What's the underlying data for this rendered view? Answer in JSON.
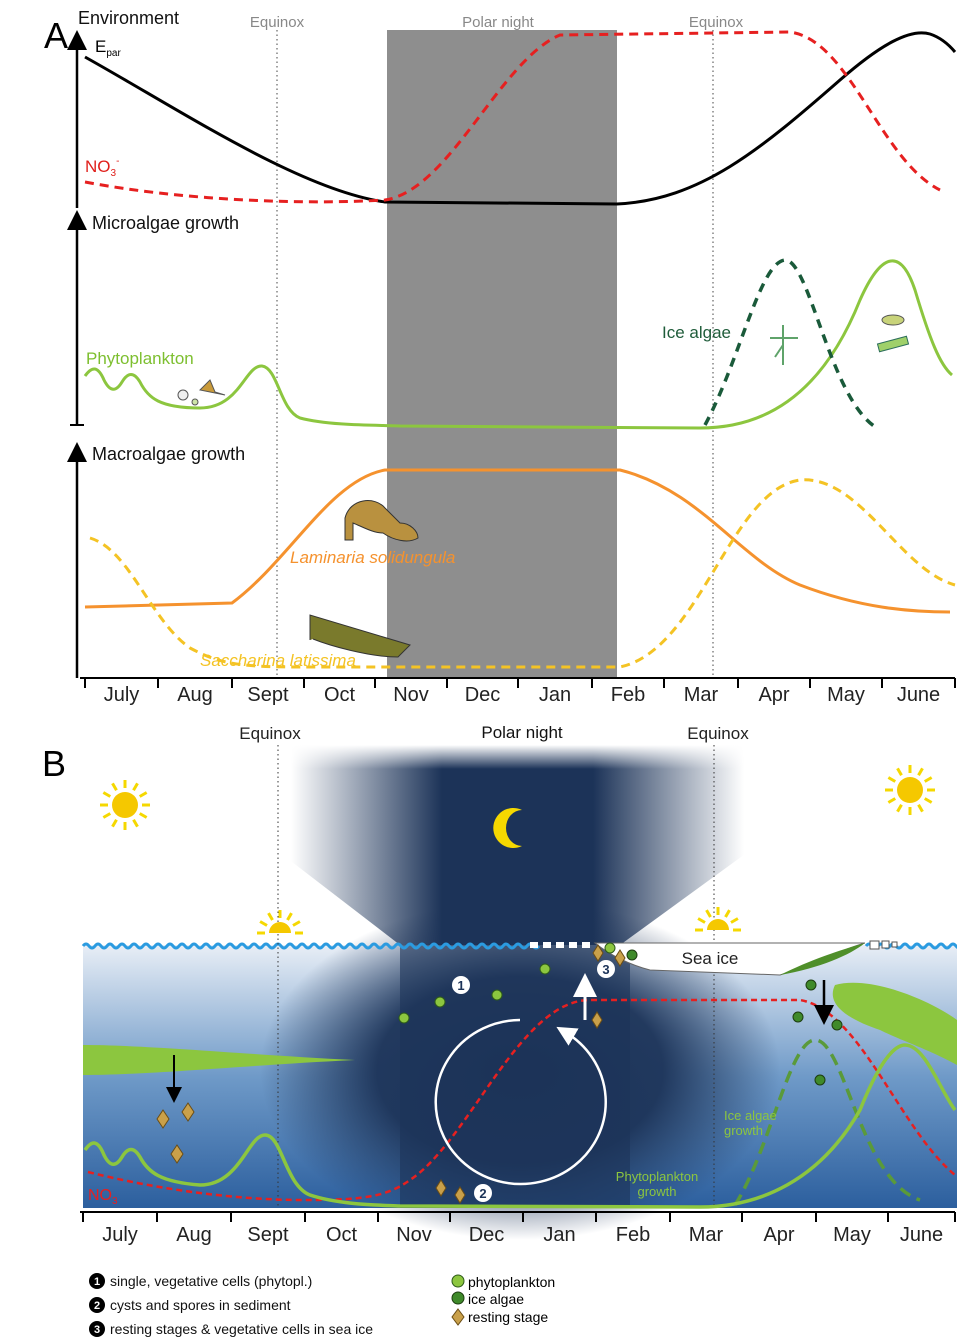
{
  "panel_a": {
    "label": "A",
    "equinox_left": "Equinox",
    "polar_night": "Polar night",
    "equinox_right": "Equinox",
    "environment": {
      "title": "Environment",
      "epar": {
        "symbol": "E",
        "subscript": "par"
      },
      "nitrate": {
        "symbol": "NO",
        "subscript": "3",
        "superscript": "-"
      }
    },
    "microalgae": {
      "title": "Microalgae growth",
      "phytoplankton": "Phytoplankton",
      "ice_algae": "Ice algae"
    },
    "macroalgae": {
      "title": "Macroalgae growth",
      "laminaria": "Laminaria solidungula",
      "saccharina": "Saccharina latissima"
    },
    "months": [
      "July",
      "Aug",
      "Sept",
      "Oct",
      "Nov",
      "Dec",
      "Jan",
      "Feb",
      "Mar",
      "Apr",
      "May",
      "June"
    ]
  },
  "panel_b": {
    "label": "B",
    "equinox_left": "Equinox",
    "polar_night": "Polar night",
    "equinox_right": "Equinox",
    "sea_ice": "Sea ice",
    "nitrate": {
      "symbol": "NO",
      "subscript": "3"
    },
    "ice_algae_growth": [
      "Ice algae",
      "growth"
    ],
    "phytoplankton_growth": [
      "Phytoplankton",
      "growth"
    ],
    "stage_markers": [
      "1",
      "2",
      "3"
    ],
    "months": [
      "July",
      "Aug",
      "Sept",
      "Oct",
      "Nov",
      "Dec",
      "Jan",
      "Feb",
      "Mar",
      "Apr",
      "May",
      "June"
    ],
    "legend": {
      "numbered": [
        {
          "number": "1",
          "text": "single, vegetative cells (phytopl.)"
        },
        {
          "number": "2",
          "text": "cysts and spores in sediment"
        },
        {
          "number": "3",
          "text": "resting stages & vegetative cells in sea ice"
        }
      ],
      "symbols": [
        "phytoplankton",
        "ice algae",
        "resting stage"
      ]
    }
  }
}
